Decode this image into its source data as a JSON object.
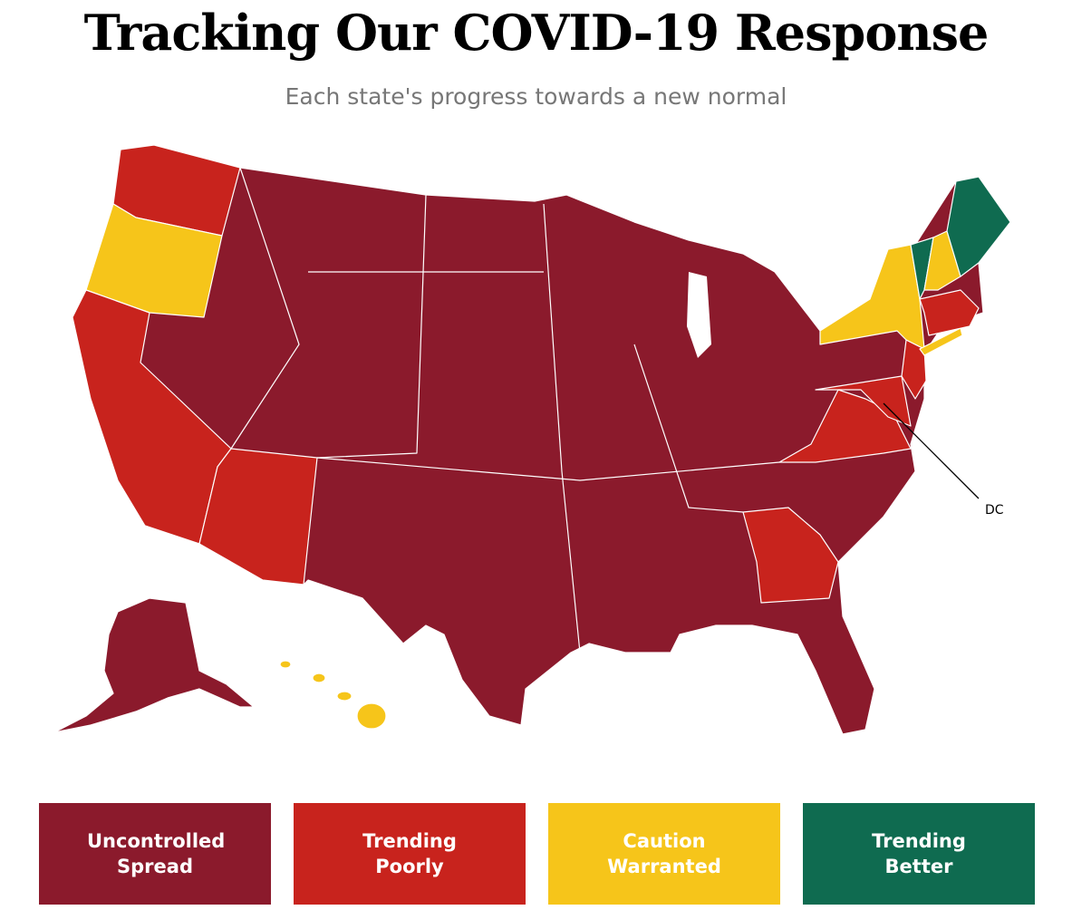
{
  "header": {
    "title": "Tracking Our COVID-19 Response",
    "subtitle": "Each state's progress towards a new normal"
  },
  "map": {
    "label": "DC"
  },
  "legend": {
    "items": [
      {
        "label": "Uncontrolled Spread",
        "color": "#8b1a2c"
      },
      {
        "label": "Trending Poorly",
        "color": "#c8231d"
      },
      {
        "label": "Caution Warranted",
        "color": "#f6c51a"
      },
      {
        "label": "Trending Better",
        "color": "#0f6b50"
      }
    ]
  }
}
